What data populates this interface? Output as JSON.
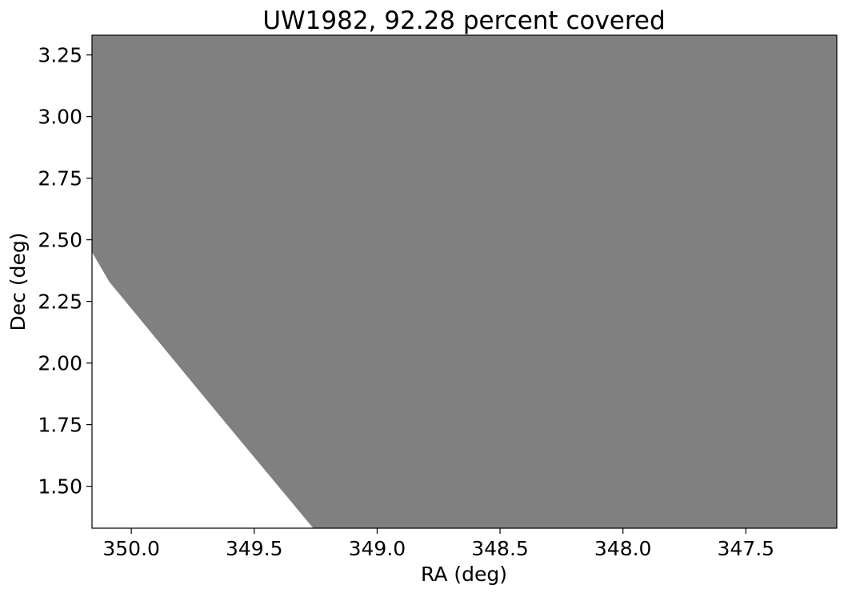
{
  "chart_data": {
    "type": "area",
    "title": "UW1982, 92.28 percent covered",
    "xlabel": "RA (deg)",
    "ylabel": "Dec (deg)",
    "xlim": [
      350.16,
      347.13
    ],
    "ylim": [
      1.33,
      3.33
    ],
    "x_inverted": true,
    "grid": false,
    "x_ticks": [
      350.0,
      349.5,
      349.0,
      348.5,
      348.0,
      347.5
    ],
    "x_tick_labels": [
      "350.0",
      "349.5",
      "349.0",
      "348.5",
      "348.0",
      "347.5"
    ],
    "y_ticks": [
      1.5,
      1.75,
      2.0,
      2.25,
      2.5,
      2.75,
      3.0,
      3.25
    ],
    "y_tick_labels": [
      "1.50",
      "1.75",
      "2.00",
      "2.25",
      "2.50",
      "2.75",
      "3.00",
      "3.25"
    ],
    "fill_color": "#808080",
    "covered_region": [
      {
        "ra": 350.16,
        "dec": 3.33
      },
      {
        "ra": 347.13,
        "dec": 3.33
      },
      {
        "ra": 347.13,
        "dec": 1.33
      },
      {
        "ra": 349.26,
        "dec": 1.33
      },
      {
        "ra": 349.66,
        "dec": 1.81
      },
      {
        "ra": 350.09,
        "dec": 2.33
      },
      {
        "ra": 350.16,
        "dec": 2.45
      }
    ]
  }
}
